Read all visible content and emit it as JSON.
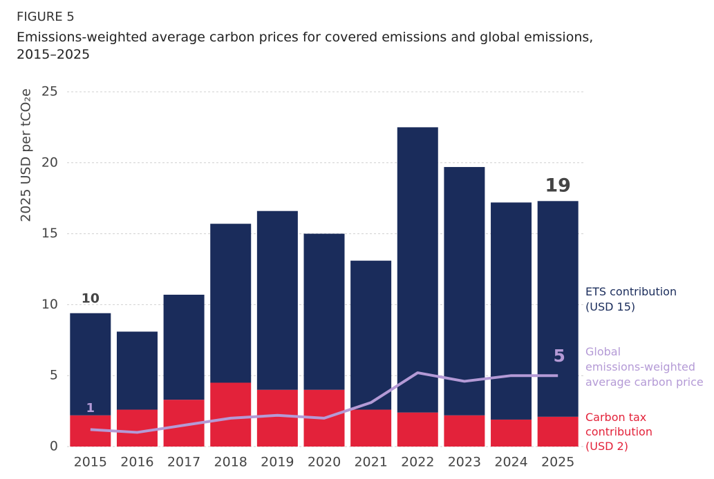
{
  "chart_data": {
    "type": "bar",
    "stacked": true,
    "figure_label": "FIGURE 5",
    "title": "Emissions-weighted average carbon prices for covered emissions and global emissions,\n2015–2025",
    "y_label": "2025 USD per tCO₂e",
    "categories": [
      "2015",
      "2016",
      "2017",
      "2018",
      "2019",
      "2020",
      "2021",
      "2022",
      "2023",
      "2024",
      "2025"
    ],
    "series": [
      {
        "name": "Carbon tax\ncontribution\n(USD 2)",
        "type": "bar",
        "color": "#e3223a",
        "values": [
          2.2,
          2.6,
          3.3,
          4.5,
          4.0,
          4.0,
          2.6,
          2.4,
          2.2,
          1.9,
          2.1
        ]
      },
      {
        "name": "ETS contribution\n(USD 15)",
        "type": "bar",
        "color": "#1a2c5b",
        "values": [
          7.2,
          5.5,
          7.4,
          11.2,
          12.6,
          11.0,
          10.5,
          20.1,
          17.5,
          15.3,
          15.2
        ]
      },
      {
        "name": "Global\nemissions-weighted\naverage carbon price",
        "type": "line",
        "color": "#b49ad6",
        "values": [
          1.2,
          1.0,
          1.5,
          2.0,
          2.2,
          2.0,
          3.1,
          5.2,
          4.6,
          5.0,
          5.0
        ]
      }
    ],
    "annotations": [
      "10",
      "19",
      "1",
      "5"
    ],
    "ylim": [
      0,
      25
    ],
    "yticks": [
      0,
      5,
      10,
      15,
      20,
      25
    ],
    "grid": true
  }
}
